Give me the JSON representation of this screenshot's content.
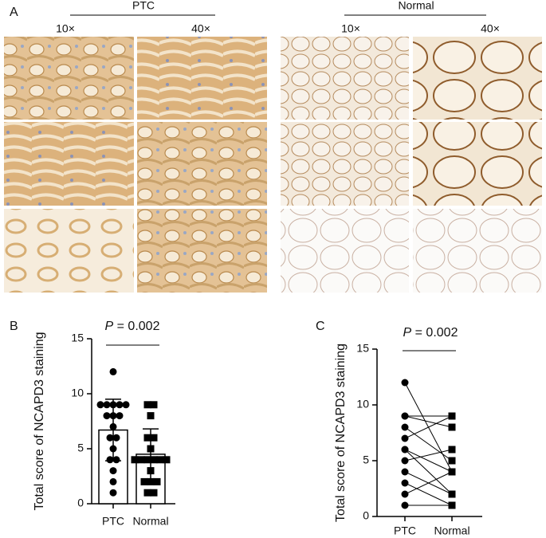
{
  "figure_a": {
    "panel_label": "A",
    "groups": [
      {
        "name": "PTC",
        "magnifications": [
          "10×",
          "40×"
        ]
      },
      {
        "name": "Normal",
        "magnifications": [
          "10×",
          "40×"
        ]
      }
    ]
  },
  "chart_data": [
    {
      "type": "bar_scatter",
      "panel_label": "B",
      "p_symbol": "P",
      "p_text": " = 0.002",
      "ylabel": "Total score of NCAPD3 staining",
      "categories": [
        "PTC",
        "Normal"
      ],
      "means": [
        6.7,
        4.5
      ],
      "sd": [
        2.8,
        2.3
      ],
      "points": [
        [
          12,
          9,
          9,
          9,
          9,
          9,
          8,
          8,
          8,
          7,
          6,
          6,
          5,
          4,
          4,
          3,
          2,
          1
        ],
        [
          9,
          9,
          8,
          6,
          6,
          5,
          4,
          4,
          4,
          4,
          4,
          4,
          3,
          2,
          2,
          2,
          1,
          1
        ]
      ],
      "markers": [
        "circle",
        "square"
      ],
      "ylim": [
        0,
        15
      ],
      "yticks": [
        0,
        5,
        10,
        15
      ]
    },
    {
      "type": "paired",
      "panel_label": "C",
      "p_symbol": "P",
      "p_text": " = 0.002",
      "ylabel": "Total score of NCAPD3 staining",
      "categories": [
        "PTC",
        "Normal"
      ],
      "values": [
        [
          12,
          9,
          9,
          8,
          7,
          6,
          6,
          5,
          4,
          3,
          2,
          1
        ],
        [
          4,
          9,
          8,
          5,
          9,
          4,
          2,
          6,
          2,
          1,
          4,
          1
        ]
      ],
      "markers": [
        "circle",
        "square"
      ],
      "ylim": [
        0,
        15
      ],
      "yticks": [
        0,
        5,
        10,
        15
      ]
    }
  ]
}
